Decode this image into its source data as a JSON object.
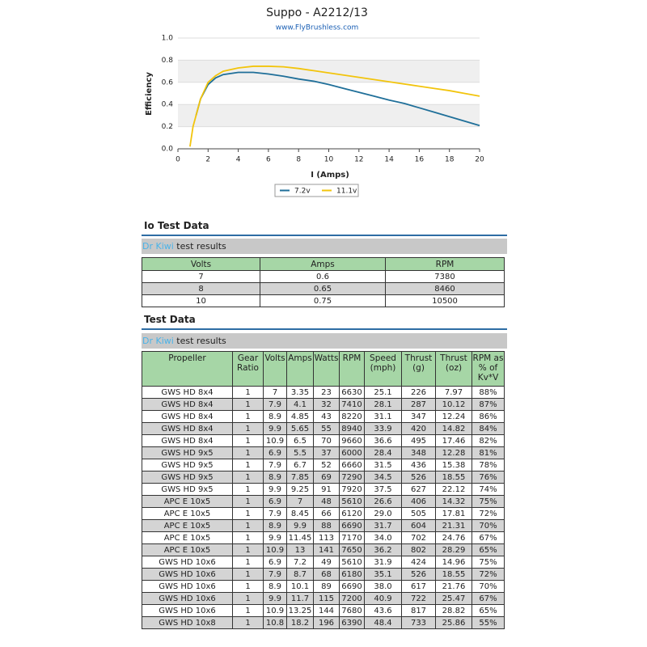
{
  "chart_data": {
    "type": "line",
    "title": "Suppo - A2212/13",
    "subtitle": "www.FlyBrushless.com",
    "x_label": "I (Amps)",
    "y_label": "Efficiency",
    "xlim": [
      0,
      20
    ],
    "xticks": [
      0,
      2,
      4,
      6,
      8,
      10,
      12,
      14,
      16,
      18,
      20
    ],
    "ylim": [
      0,
      1
    ],
    "yticks": [
      {
        "value": 0,
        "label": "0.0"
      },
      0.2,
      0.4,
      0.6,
      0.8,
      {
        "value": 1,
        "label": "1.0"
      }
    ],
    "grid": true,
    "legend": "bottom",
    "series": [
      {
        "name": "7.2v",
        "color": "#1f6f99",
        "x": [
          1.2,
          1.5,
          2,
          2.5,
          3,
          4,
          5,
          6,
          7,
          8,
          9,
          10,
          11,
          12,
          13,
          14,
          15,
          16,
          17,
          18,
          19,
          20
        ],
        "values": [
          0.3,
          0.45,
          0.58,
          0.64,
          0.67,
          0.69,
          0.69,
          0.675,
          0.655,
          0.63,
          0.61,
          0.58,
          0.545,
          0.51,
          0.475,
          0.44,
          0.41,
          0.37,
          0.33,
          0.29,
          0.25,
          0.21
        ]
      },
      {
        "name": "11.1v",
        "color": "#f2c40c",
        "x": [
          0.8,
          1,
          1.5,
          2,
          2.5,
          3,
          4,
          5,
          6,
          7,
          8,
          9,
          10,
          11,
          12,
          13,
          14,
          15,
          16,
          17,
          18,
          19,
          20
        ],
        "values": [
          0.02,
          0.2,
          0.45,
          0.6,
          0.66,
          0.7,
          0.73,
          0.745,
          0.745,
          0.74,
          0.725,
          0.705,
          0.685,
          0.665,
          0.645,
          0.625,
          0.605,
          0.585,
          0.565,
          0.545,
          0.525,
          0.5,
          0.475
        ]
      }
    ]
  },
  "io_section": {
    "heading": "Io Test Data",
    "link": "Dr Kiwi",
    "caption": " test results",
    "table": {
      "header": [
        "Volts",
        "Amps",
        "RPM"
      ],
      "rows": [
        [
          "7",
          "0.6",
          "7380"
        ],
        [
          "8",
          "0.65",
          "8460"
        ],
        [
          "10",
          "0.75",
          "10500"
        ]
      ]
    }
  },
  "test_section": {
    "heading": "Test Data",
    "link": "Dr Kiwi",
    "caption": " test results",
    "table": {
      "header": [
        "Propeller",
        "Gear Ratio",
        "Volts",
        "Amps",
        "Watts",
        "RPM",
        "Speed (mph)",
        "Thrust (g)",
        "Thrust (oz)",
        "RPM as % of Kv*V"
      ],
      "rows": [
        [
          "GWS HD 8x4",
          "1",
          "7",
          "3.35",
          "23",
          "6630",
          "25.1",
          "226",
          "7.97",
          "88%"
        ],
        [
          "GWS HD 8x4",
          "1",
          "7.9",
          "4.1",
          "32",
          "7410",
          "28.1",
          "287",
          "10.12",
          "87%"
        ],
        [
          "GWS HD 8x4",
          "1",
          "8.9",
          "4.85",
          "43",
          "8220",
          "31.1",
          "347",
          "12.24",
          "86%"
        ],
        [
          "GWS HD 8x4",
          "1",
          "9.9",
          "5.65",
          "55",
          "8940",
          "33.9",
          "420",
          "14.82",
          "84%"
        ],
        [
          "GWS HD 8x4",
          "1",
          "10.9",
          "6.5",
          "70",
          "9660",
          "36.6",
          "495",
          "17.46",
          "82%"
        ],
        [
          "GWS HD 9x5",
          "1",
          "6.9",
          "5.5",
          "37",
          "6000",
          "28.4",
          "348",
          "12.28",
          "81%"
        ],
        [
          "GWS HD 9x5",
          "1",
          "7.9",
          "6.7",
          "52",
          "6660",
          "31.5",
          "436",
          "15.38",
          "78%"
        ],
        [
          "GWS HD 9x5",
          "1",
          "8.9",
          "7.85",
          "69",
          "7290",
          "34.5",
          "526",
          "18.55",
          "76%"
        ],
        [
          "GWS HD 9x5",
          "1",
          "9.9",
          "9.25",
          "91",
          "7920",
          "37.5",
          "627",
          "22.12",
          "74%"
        ],
        [
          "APC E 10x5",
          "1",
          "6.9",
          "7",
          "48",
          "5610",
          "26.6",
          "406",
          "14.32",
          "75%"
        ],
        [
          "APC E 10x5",
          "1",
          "7.9",
          "8.45",
          "66",
          "6120",
          "29.0",
          "505",
          "17.81",
          "72%"
        ],
        [
          "APC E 10x5",
          "1",
          "8.9",
          "9.9",
          "88",
          "6690",
          "31.7",
          "604",
          "21.31",
          "70%"
        ],
        [
          "APC E 10x5",
          "1",
          "9.9",
          "11.45",
          "113",
          "7170",
          "34.0",
          "702",
          "24.76",
          "67%"
        ],
        [
          "APC E 10x5",
          "1",
          "10.9",
          "13",
          "141",
          "7650",
          "36.2",
          "802",
          "28.29",
          "65%"
        ],
        [
          "GWS HD 10x6",
          "1",
          "6.9",
          "7.2",
          "49",
          "5610",
          "31.9",
          "424",
          "14.96",
          "75%"
        ],
        [
          "GWS HD 10x6",
          "1",
          "7.9",
          "8.7",
          "68",
          "6180",
          "35.1",
          "526",
          "18.55",
          "72%"
        ],
        [
          "GWS HD 10x6",
          "1",
          "8.9",
          "10.1",
          "89",
          "6690",
          "38.0",
          "617",
          "21.76",
          "70%"
        ],
        [
          "GWS HD 10x6",
          "1",
          "9.9",
          "11.7",
          "115",
          "7200",
          "40.9",
          "722",
          "25.47",
          "67%"
        ],
        [
          "GWS HD 10x6",
          "1",
          "10.9",
          "13.25",
          "144",
          "7680",
          "43.6",
          "817",
          "28.82",
          "65%"
        ],
        [
          "GWS HD 10x8",
          "1",
          "10.8",
          "18.2",
          "196",
          "6390",
          "48.4",
          "733",
          "25.86",
          "55%"
        ]
      ]
    }
  }
}
